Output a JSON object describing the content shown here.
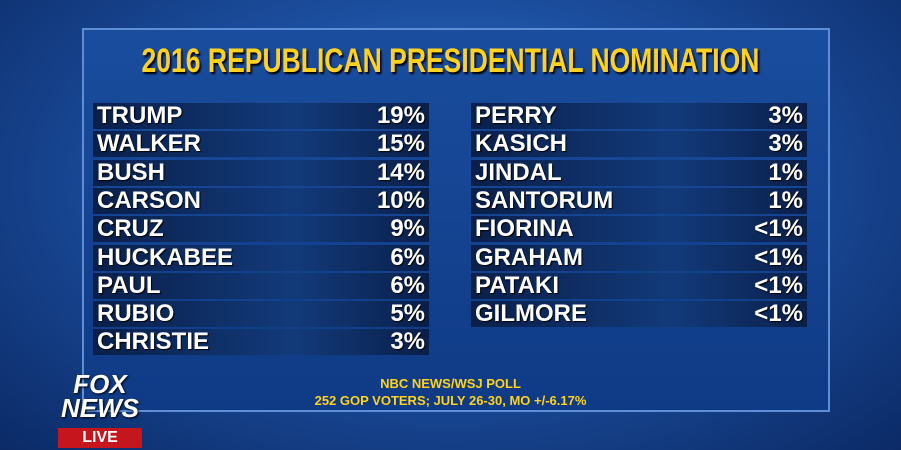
{
  "title": "2016 REPUBLICAN PRESIDENTIAL NOMINATION",
  "columns": [
    {
      "rows": [
        [
          "TRUMP",
          "19%"
        ],
        [
          "WALKER",
          "15%"
        ],
        [
          "BUSH",
          "14%"
        ],
        [
          "CARSON",
          "10%"
        ],
        [
          "CRUZ",
          "9%"
        ],
        [
          "HUCKABEE",
          "6%"
        ],
        [
          "PAUL",
          "6%"
        ],
        [
          "RUBIO",
          "5%"
        ],
        [
          "CHRISTIE",
          "3%"
        ]
      ]
    },
    {
      "rows": [
        [
          "PERRY",
          "3%"
        ],
        [
          "KASICH",
          "3%"
        ],
        [
          "JINDAL",
          "1%"
        ],
        [
          "SANTORUM",
          "1%"
        ],
        [
          "FIORINA",
          "<1%"
        ],
        [
          "GRAHAM",
          "<1%"
        ],
        [
          "PATAKI",
          "<1%"
        ],
        [
          "GILMORE",
          "<1%"
        ]
      ]
    }
  ],
  "source": [
    "NBC NEWS/WSJ POLL",
    "252 GOP VOTERS; JULY 26-30, MO +/-6.17%"
  ],
  "logo": {
    "top": "FOX",
    "bottom": "NEWS",
    "live": "LIVE"
  }
}
